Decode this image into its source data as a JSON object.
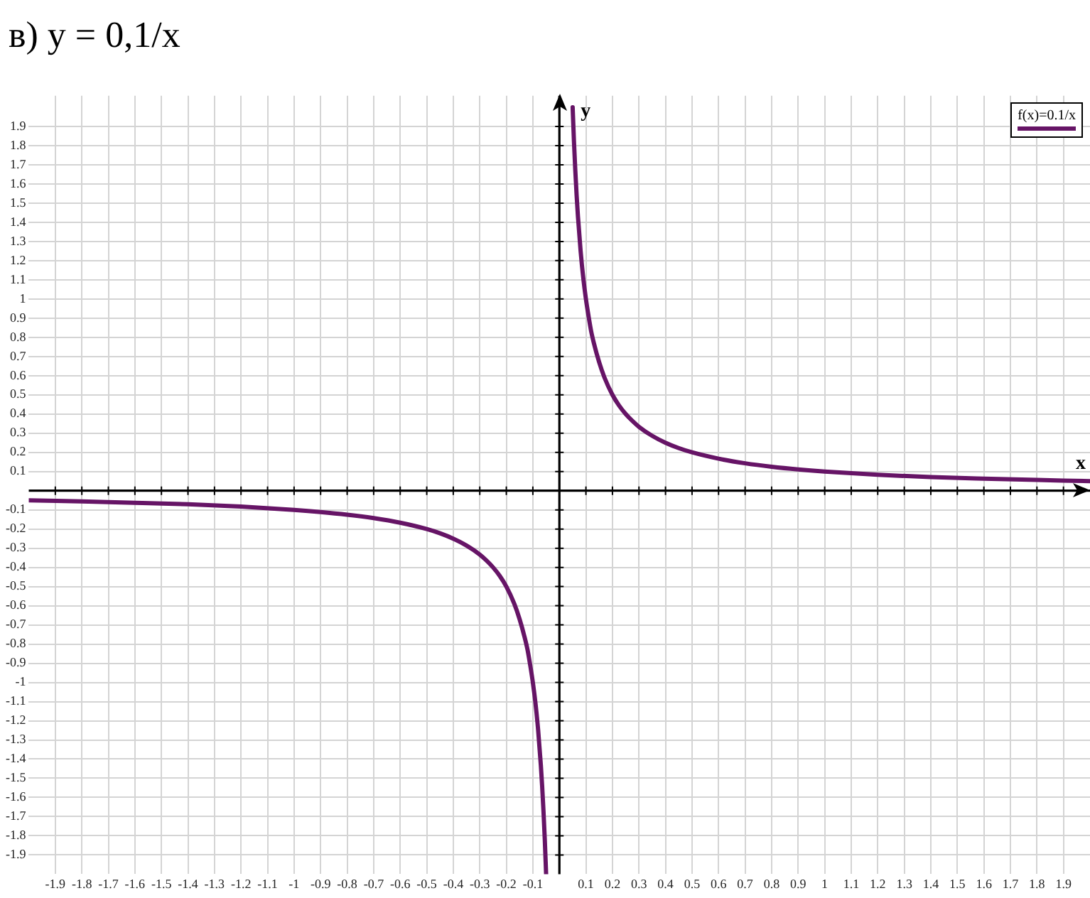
{
  "chart_data": {
    "type": "line",
    "title": "в) y = 0,1/x",
    "xlabel": "x",
    "ylabel": "y",
    "x": [
      -2,
      -1.8,
      -1.6,
      -1.4,
      -1.2,
      -1,
      -0.9,
      -0.8,
      -0.7,
      -0.6,
      -0.5,
      -0.45,
      -0.4,
      -0.35,
      -0.3,
      -0.275,
      -0.25,
      -0.225,
      -0.2,
      -0.17,
      -0.15,
      -0.13,
      -0.12,
      -0.11,
      -0.1,
      -0.09,
      -0.08,
      -0.07,
      -0.065,
      -0.06,
      -0.055,
      -0.05,
      0,
      0.05,
      0.055,
      0.06,
      0.065,
      0.07,
      0.08,
      0.09,
      0.1,
      0.11,
      0.12,
      0.13,
      0.15,
      0.17,
      0.2,
      0.225,
      0.25,
      0.275,
      0.3,
      0.35,
      0.4,
      0.45,
      0.5,
      0.6,
      0.7,
      0.8,
      0.9,
      1,
      1.2,
      1.4,
      1.6,
      1.8,
      2
    ],
    "series": [
      {
        "name": "f(x)=0.1/x",
        "color": "#661466",
        "values": [
          -0.05,
          -0.056,
          -0.063,
          -0.071,
          -0.083,
          -0.1,
          -0.111,
          -0.125,
          -0.143,
          -0.167,
          -0.2,
          -0.222,
          -0.25,
          -0.286,
          -0.333,
          -0.364,
          -0.4,
          -0.444,
          -0.5,
          -0.59,
          -0.67,
          -0.77,
          -0.83,
          -0.91,
          -1,
          -1.11,
          -1.25,
          -1.43,
          -1.54,
          -1.67,
          -1.82,
          -2,
          null,
          2,
          1.82,
          1.67,
          1.54,
          1.43,
          1.25,
          1.11,
          1,
          0.91,
          0.83,
          0.77,
          0.67,
          0.59,
          0.5,
          0.444,
          0.4,
          0.364,
          0.333,
          0.286,
          0.25,
          0.222,
          0.2,
          0.167,
          0.143,
          0.125,
          0.111,
          0.1,
          0.083,
          0.071,
          0.063,
          0.056,
          0.05
        ]
      }
    ],
    "xlim": [
      -2,
      2
    ],
    "ylim": [
      -2,
      2.06
    ],
    "xticks": [
      -1.9,
      -1.8,
      -1.7,
      -1.6,
      -1.5,
      -1.4,
      -1.3,
      -1.2,
      -1.1,
      -1,
      -0.9,
      -0.8,
      -0.7,
      -0.6,
      -0.5,
      -0.4,
      -0.3,
      -0.2,
      -0.1,
      0.1,
      0.2,
      0.3,
      0.4,
      0.5,
      0.6,
      0.7,
      0.8,
      0.9,
      1,
      1.1,
      1.2,
      1.3,
      1.4,
      1.5,
      1.6,
      1.7,
      1.8,
      1.9
    ],
    "yticks": [
      -1.9,
      -1.8,
      -1.7,
      -1.6,
      -1.5,
      -1.4,
      -1.3,
      -1.2,
      -1.1,
      -1,
      -0.9,
      -0.8,
      -0.7,
      -0.6,
      -0.5,
      -0.4,
      -0.3,
      -0.2,
      -0.1,
      0.1,
      0.2,
      0.3,
      0.4,
      0.5,
      0.6,
      0.7,
      0.8,
      0.9,
      1,
      1.1,
      1.2,
      1.3,
      1.4,
      1.5,
      1.6,
      1.7,
      1.8,
      1.9
    ],
    "grid": true,
    "legend": "top right",
    "marker": "none"
  }
}
